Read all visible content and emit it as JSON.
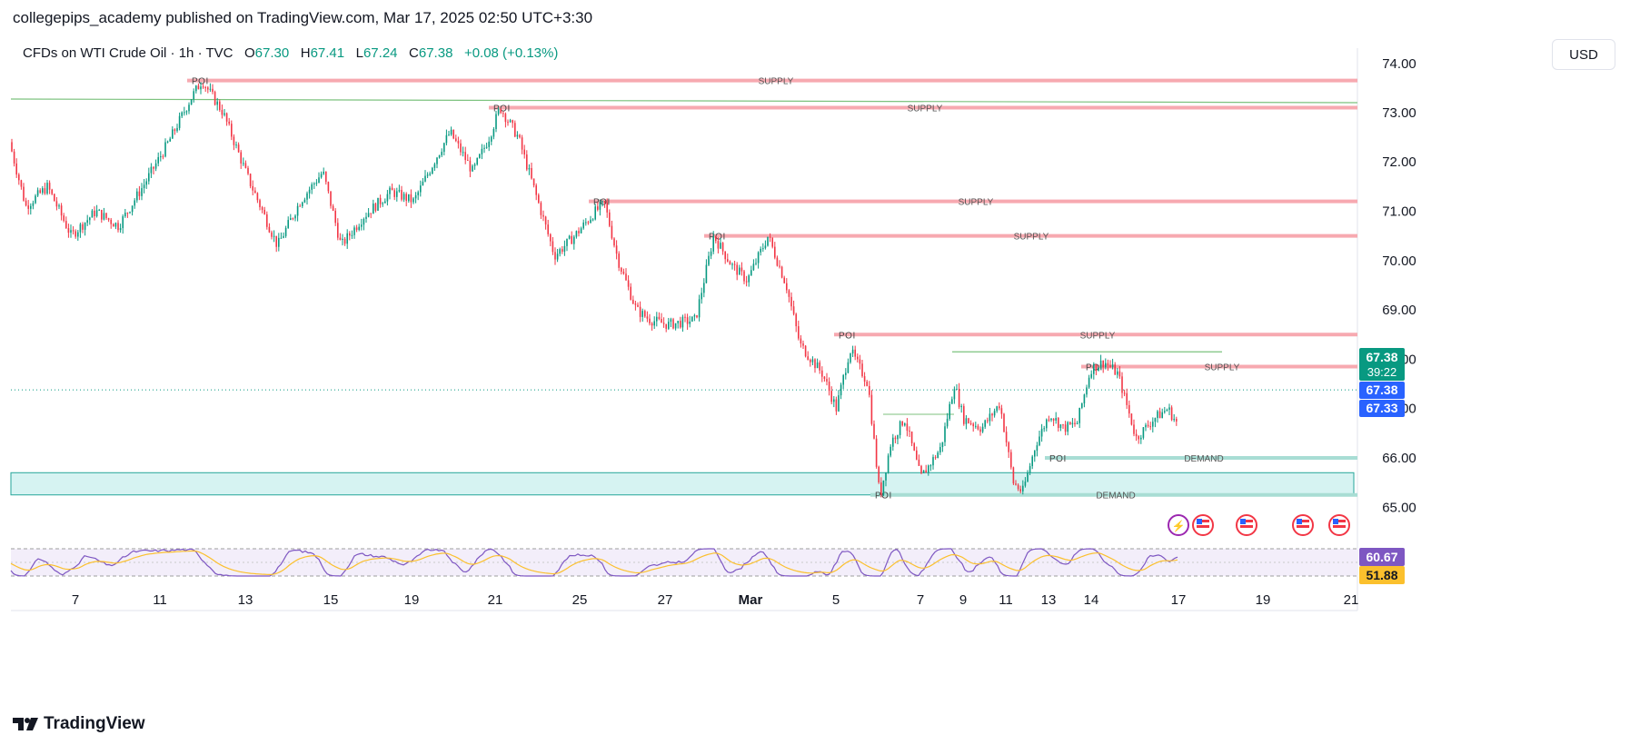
{
  "header": {
    "publisher_line": "collegepips_academy published on TradingView.com, Mar 17, 2025 02:50 UTC+3:30",
    "symbol": "CFDs on WTI Crude Oil",
    "interval": "1h",
    "exchange": "TVC",
    "o_label": "O",
    "o_value": "67.30",
    "h_label": "H",
    "h_value": "67.41",
    "l_label": "L",
    "l_value": "67.24",
    "c_label": "C",
    "c_value": "67.38",
    "change": "+0.08 (+0.13%)",
    "currency_button": "USD"
  },
  "footer": {
    "brand": "TradingView"
  },
  "colors": {
    "up": "#089981",
    "down": "#f23645",
    "supply": "#f7a9b0",
    "demand": "#a8ddd4",
    "zone_fill": "#d6f3f2",
    "zone_border": "#26a69a",
    "rsi": "#7e57c2",
    "rsi_ma": "#fbc02d",
    "last_price": "#089981",
    "blue_tag": "#2962ff"
  },
  "chart_data": {
    "type": "candlestick",
    "symbol": "CFDs on WTI Crude Oil",
    "timeframe": "1h",
    "ylim": [
      64.85,
      73.8
    ],
    "y_ticks": [
      "65.00",
      "66.00",
      "67.00",
      "68.00",
      "69.00",
      "70.00",
      "71.00",
      "72.00",
      "73.00"
    ],
    "x_ticks": [
      "7",
      "11",
      "13",
      "15",
      "19",
      "21",
      "25",
      "27",
      "Mar",
      "5",
      "7",
      "9",
      "11",
      "13",
      "14",
      "17",
      "19",
      "21"
    ],
    "price_path": [
      [
        0,
        72.4
      ],
      [
        18,
        71.1
      ],
      [
        42,
        71.5
      ],
      [
        68,
        70.5
      ],
      [
        95,
        71.0
      ],
      [
        120,
        70.7
      ],
      [
        150,
        71.6
      ],
      [
        175,
        72.4
      ],
      [
        200,
        73.3
      ],
      [
        212,
        73.65
      ],
      [
        235,
        73.0
      ],
      [
        262,
        71.7
      ],
      [
        295,
        70.3
      ],
      [
        320,
        71.2
      ],
      [
        345,
        71.8
      ],
      [
        365,
        70.3
      ],
      [
        390,
        70.9
      ],
      [
        420,
        71.4
      ],
      [
        445,
        71.2
      ],
      [
        470,
        72.1
      ],
      [
        485,
        72.6
      ],
      [
        510,
        71.8
      ],
      [
        528,
        72.5
      ],
      [
        540,
        73.1
      ],
      [
        560,
        72.5
      ],
      [
        580,
        71.3
      ],
      [
        600,
        70.1
      ],
      [
        622,
        70.5
      ],
      [
        645,
        71.0
      ],
      [
        655,
        71.15
      ],
      [
        670,
        70.0
      ],
      [
        690,
        69.0
      ],
      [
        705,
        68.8
      ],
      [
        725,
        68.7
      ],
      [
        755,
        68.8
      ],
      [
        775,
        70.5
      ],
      [
        795,
        69.9
      ],
      [
        812,
        69.6
      ],
      [
        835,
        70.5
      ],
      [
        855,
        69.5
      ],
      [
        870,
        68.3
      ],
      [
        895,
        67.7
      ],
      [
        910,
        67.0
      ],
      [
        925,
        68.2
      ],
      [
        945,
        67.5
      ],
      [
        958,
        65.2
      ],
      [
        970,
        66.3
      ],
      [
        985,
        66.8
      ],
      [
        1003,
        65.6
      ],
      [
        1025,
        66.2
      ],
      [
        1040,
        67.5
      ],
      [
        1050,
        66.8
      ],
      [
        1070,
        66.6
      ],
      [
        1090,
        67.1
      ],
      [
        1105,
        65.5
      ],
      [
        1115,
        65.3
      ],
      [
        1130,
        66.3
      ],
      [
        1145,
        66.9
      ],
      [
        1160,
        66.6
      ],
      [
        1175,
        66.7
      ],
      [
        1190,
        67.8
      ],
      [
        1205,
        67.95
      ],
      [
        1220,
        67.7
      ],
      [
        1240,
        66.4
      ],
      [
        1260,
        66.8
      ],
      [
        1275,
        67.0
      ],
      [
        1285,
        66.7
      ],
      [
        1296,
        67.38
      ]
    ],
    "zones": [
      {
        "type": "supply",
        "poi": "POI",
        "label": "SUPPLY",
        "level": 73.65
      },
      {
        "type": "supply",
        "poi": "POI",
        "label": "SUPPLY",
        "level": 73.1
      },
      {
        "type": "supply",
        "poi": "POI",
        "label": "SUPPLY",
        "level": 71.2
      },
      {
        "type": "supply",
        "poi": "POI",
        "label": "SUPPLY",
        "level": 70.5
      },
      {
        "type": "supply",
        "poi": "POI",
        "label": "SUPPLY",
        "level": 68.5
      },
      {
        "type": "supply",
        "poi": "POI",
        "label": "SUPPLY",
        "level": 67.85
      },
      {
        "type": "demand",
        "poi": "POI",
        "label": "DEMAND",
        "level": 66.0
      },
      {
        "type": "demand",
        "poi": "POI",
        "label": "DEMAND",
        "level": 65.25
      }
    ],
    "demand_box": [
      65.25,
      65.7
    ],
    "green_lines": [
      73.25,
      68.15
    ],
    "price_tags": {
      "last": "67.38",
      "countdown": "39:22",
      "tag2": "67.38",
      "tag3": "67.33"
    },
    "rsi": {
      "value": "60.67",
      "ma_value": "51.88"
    }
  }
}
